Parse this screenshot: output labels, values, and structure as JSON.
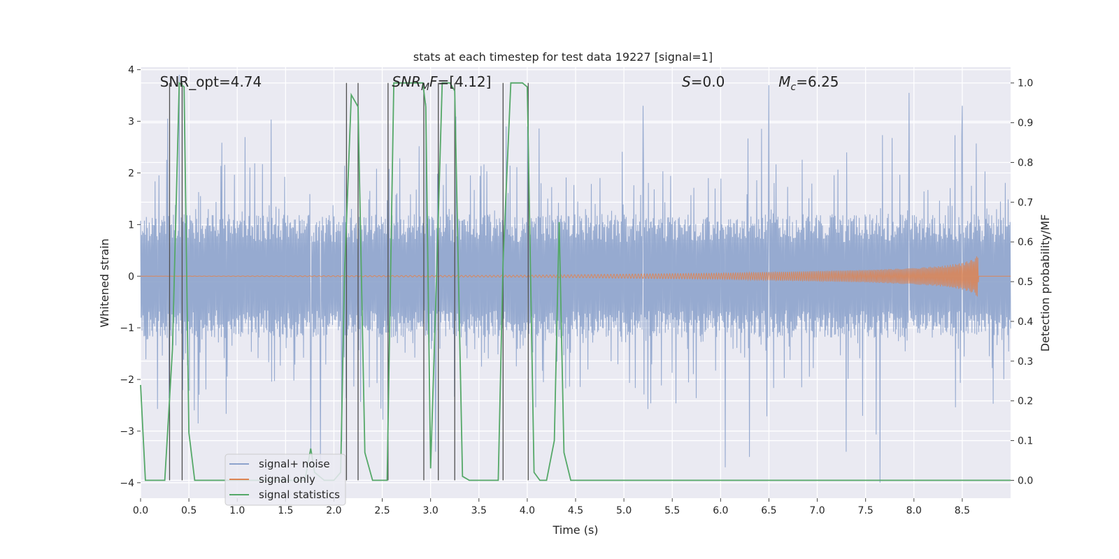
{
  "chart_data": {
    "type": "line",
    "title": "stats at each timestep for test data 19227 [signal=1]",
    "xlabel": "Time (s)",
    "ylabel": "Whitened strain",
    "y2label": "Detection probability/MF",
    "xlim": [
      0.0,
      9.0
    ],
    "ylim": [
      -4.3,
      4.05
    ],
    "y2lim": [
      -0.045,
      1.04
    ],
    "xticks": [
      "0.0",
      "0.5",
      "1.0",
      "1.5",
      "2.0",
      "2.5",
      "3.0",
      "3.5",
      "4.0",
      "4.5",
      "5.0",
      "5.5",
      "6.0",
      "6.5",
      "7.0",
      "7.5",
      "8.0",
      "8.5"
    ],
    "yticks": [
      "4",
      "3",
      "2",
      "1",
      "0",
      "−1",
      "−2",
      "−3",
      "−4"
    ],
    "y2ticks": [
      "1.0",
      "0.9",
      "0.8",
      "0.7",
      "0.6",
      "0.5",
      "0.4",
      "0.3",
      "0.2",
      "0.1",
      "0.0"
    ],
    "grid": true,
    "legend_position": "lower-left",
    "annotations": [
      {
        "text": "SNR_opt=4.74",
        "x": 0.2
      },
      {
        "text_html": "SNR_MF=[4.12]",
        "x": 2.6
      },
      {
        "text": "S=0.0",
        "x": 5.6
      },
      {
        "text": "M_c=6.25",
        "x": 6.6
      }
    ],
    "colors": {
      "noise": "#8da3cc",
      "signal": "#dd8452",
      "stats": "#55a868",
      "vlines": "#4f4f4f",
      "background": "#eaeaf2"
    },
    "series": [
      {
        "name": "signal+ noise",
        "noise_range": [
          -2.0,
          2.0
        ],
        "peak_events": [
          {
            "x": 0.28,
            "y": 3.05
          },
          {
            "x": 0.4,
            "y": 3.9
          },
          {
            "x": 1.76,
            "y": -3.4
          },
          {
            "x": 1.86,
            "y": -3.6
          },
          {
            "x": 2.08,
            "y": -3.2
          },
          {
            "x": 2.95,
            "y": 3.35
          },
          {
            "x": 3.05,
            "y": -3.4
          },
          {
            "x": 3.78,
            "y": 2.9
          },
          {
            "x": 4.0,
            "y": 2.9
          },
          {
            "x": 5.2,
            "y": 3.3
          },
          {
            "x": 6.05,
            "y": -3.7
          },
          {
            "x": 6.3,
            "y": -3.5
          },
          {
            "x": 6.5,
            "y": 3.7
          },
          {
            "x": 7.3,
            "y": -3.4
          },
          {
            "x": 7.65,
            "y": -4.0
          },
          {
            "x": 7.95,
            "y": 3.55
          },
          {
            "x": 8.5,
            "y": 3.3
          }
        ]
      },
      {
        "name": "signal only",
        "x": [
          0.0,
          4.0,
          4.5,
          5.0,
          5.5,
          6.0,
          6.5,
          7.0,
          7.5,
          8.0,
          8.3,
          8.5,
          8.6,
          8.66,
          8.67,
          9.0
        ],
        "amplitude": [
          0.0,
          0.02,
          0.03,
          0.04,
          0.05,
          0.06,
          0.08,
          0.1,
          0.12,
          0.16,
          0.2,
          0.26,
          0.32,
          0.4,
          0.0,
          0.0
        ]
      },
      {
        "name": "signal statistics",
        "axis": "right",
        "x": [
          0.0,
          0.05,
          0.1,
          0.2,
          0.25,
          0.33,
          0.4,
          0.45,
          0.5,
          0.56,
          0.6,
          0.8,
          1.0,
          1.1,
          1.3,
          1.5,
          1.7,
          1.76,
          1.8,
          1.9,
          2.0,
          2.07,
          2.11,
          2.18,
          2.25,
          2.32,
          2.4,
          2.5,
          2.55,
          2.62,
          2.8,
          2.92,
          2.95,
          3.0,
          3.06,
          3.12,
          3.15,
          3.2,
          3.25,
          3.33,
          3.4,
          3.5,
          3.7,
          3.75,
          3.83,
          3.95,
          4.0,
          4.07,
          4.13,
          4.2,
          4.28,
          4.33,
          4.38,
          4.45,
          5.8,
          5.9,
          6.5,
          9.0
        ],
        "values": [
          0.24,
          0.0,
          0.0,
          0.0,
          0.0,
          0.33,
          1.0,
          0.99,
          0.12,
          0.0,
          0.0,
          0.0,
          0.0,
          0.0,
          0.0,
          0.0,
          0.0,
          0.08,
          0.02,
          0.0,
          0.0,
          0.02,
          0.52,
          0.97,
          0.94,
          0.07,
          0.0,
          0.0,
          0.0,
          1.0,
          1.0,
          1.0,
          0.94,
          0.03,
          0.5,
          1.0,
          1.0,
          1.0,
          0.98,
          0.01,
          0.0,
          0.0,
          0.0,
          0.55,
          1.0,
          1.0,
          0.99,
          0.02,
          0.0,
          0.0,
          0.1,
          0.65,
          0.07,
          0.0,
          0.0,
          0.0,
          0.0,
          0.0
        ]
      }
    ],
    "vlines": [
      0.3,
      0.43,
      2.13,
      2.25,
      2.56,
      2.93,
      3.08,
      3.25,
      3.75,
      4.01
    ]
  }
}
